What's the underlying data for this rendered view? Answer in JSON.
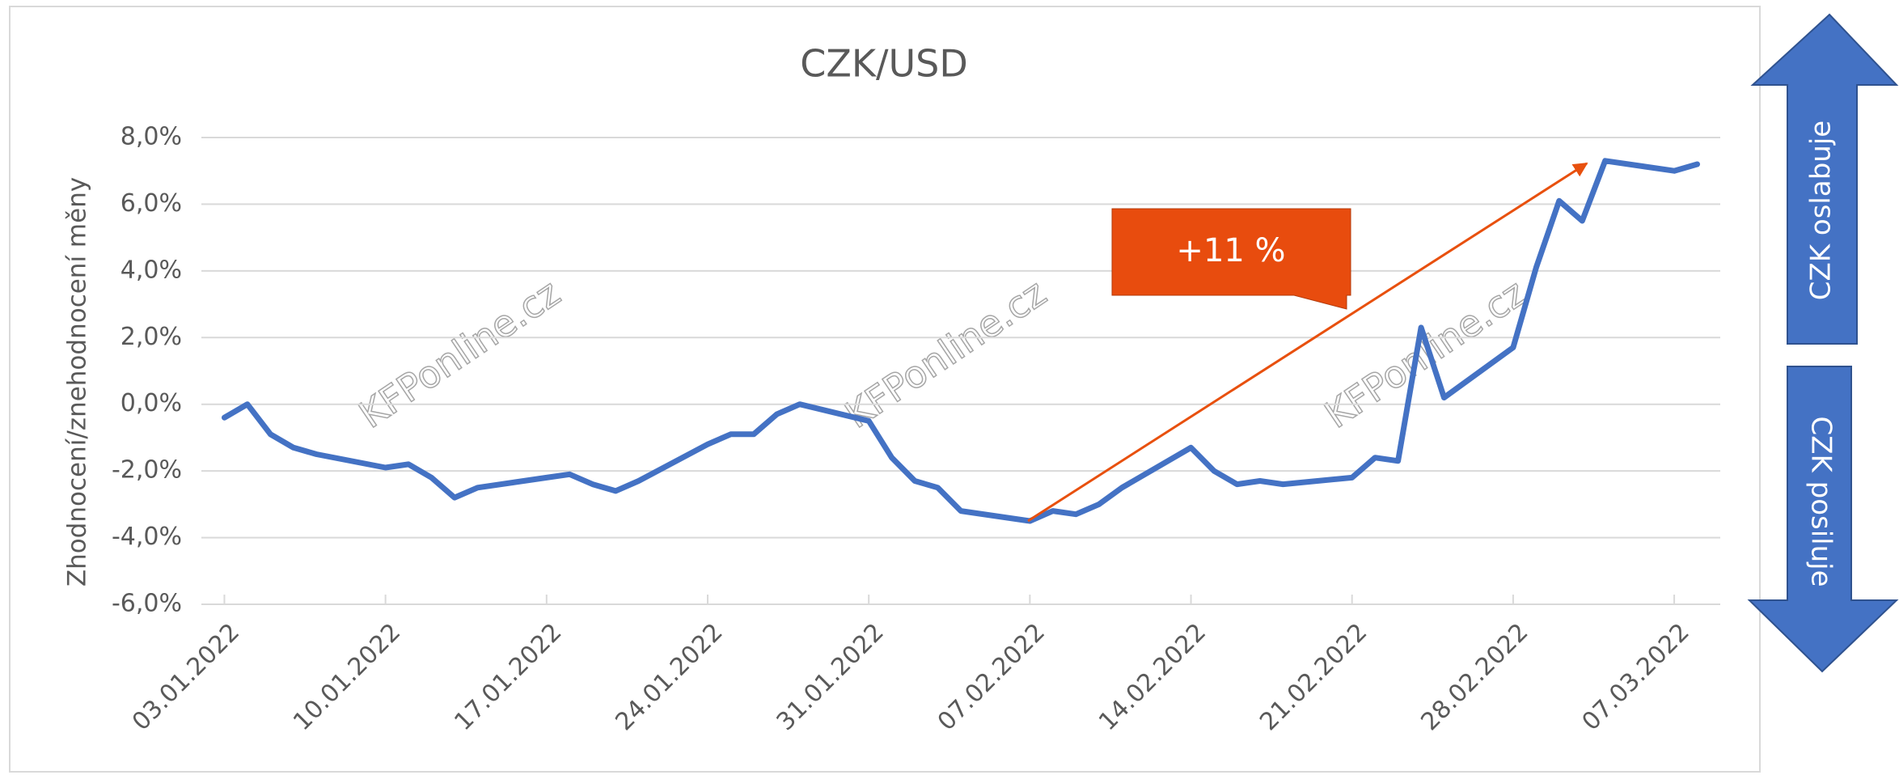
{
  "chart_data": {
    "type": "line",
    "title": "CZK/USD",
    "y_label": "Zhodnocení/znehodnocení měny",
    "x": [
      "03.01.2022",
      "04.01.2022",
      "05.01.2022",
      "06.01.2022",
      "07.01.2022",
      "10.01.2022",
      "11.01.2022",
      "12.01.2022",
      "13.01.2022",
      "14.01.2022",
      "17.01.2022",
      "18.01.2022",
      "19.01.2022",
      "20.01.2022",
      "21.01.2022",
      "24.01.2022",
      "25.01.2022",
      "26.01.2022",
      "27.01.2022",
      "28.01.2022",
      "31.01.2022",
      "01.02.2022",
      "02.02.2022",
      "03.02.2022",
      "04.02.2022",
      "07.02.2022",
      "08.02.2022",
      "09.02.2022",
      "10.02.2022",
      "11.02.2022",
      "14.02.2022",
      "15.02.2022",
      "16.02.2022",
      "17.02.2022",
      "18.02.2022",
      "21.02.2022",
      "22.02.2022",
      "23.02.2022",
      "24.02.2022",
      "25.02.2022",
      "28.02.2022",
      "01.03.2022",
      "02.03.2022",
      "03.03.2022",
      "04.03.2022",
      "07.03.2022",
      "08.03.2022"
    ],
    "series": [
      {
        "name": "CZK/USD",
        "color": "#4472c4",
        "values": [
          -0.4,
          0.0,
          -0.9,
          -1.3,
          -1.5,
          -1.9,
          -1.8,
          -2.2,
          -2.8,
          -2.5,
          -2.2,
          -2.1,
          -2.4,
          -2.6,
          -2.3,
          -1.2,
          -0.9,
          -0.9,
          -0.3,
          0.0,
          -0.5,
          -1.6,
          -2.3,
          -2.5,
          -3.2,
          -3.5,
          -3.2,
          -3.3,
          -3.0,
          -2.5,
          -1.3,
          -2.0,
          -2.4,
          -2.3,
          -2.4,
          -2.2,
          -1.6,
          -1.7,
          2.3,
          0.2,
          1.7,
          4.1,
          6.1,
          5.5,
          7.3,
          7.0,
          7.2
        ]
      }
    ],
    "xlim": [
      "02.01.2022",
      "09.03.2022"
    ],
    "xticks": [
      "03.01.2022",
      "10.01.2022",
      "17.01.2022",
      "24.01.2022",
      "31.01.2022",
      "07.02.2022",
      "14.02.2022",
      "21.02.2022",
      "28.02.2022",
      "07.03.2022"
    ],
    "ylim": [
      -6,
      8
    ],
    "yticks": [
      {
        "value": -6,
        "label": "-6,0%"
      },
      {
        "value": -4,
        "label": "-4,0%"
      },
      {
        "value": -2,
        "label": "-2,0%"
      },
      {
        "value": 0,
        "label": "0,0%"
      },
      {
        "value": 2,
        "label": "2,0%"
      },
      {
        "value": 4,
        "label": "4,0%"
      },
      {
        "value": 6,
        "label": "6,0%"
      },
      {
        "value": 8,
        "label": "8,0%"
      }
    ],
    "grid": true,
    "callout": "+11 %",
    "side_labels": [
      "CZK oslabuje",
      "CZK posiluje"
    ],
    "watermarks": [
      "KFPonline.cz",
      "KFPonline.cz",
      "KFPonline.cz"
    ]
  }
}
